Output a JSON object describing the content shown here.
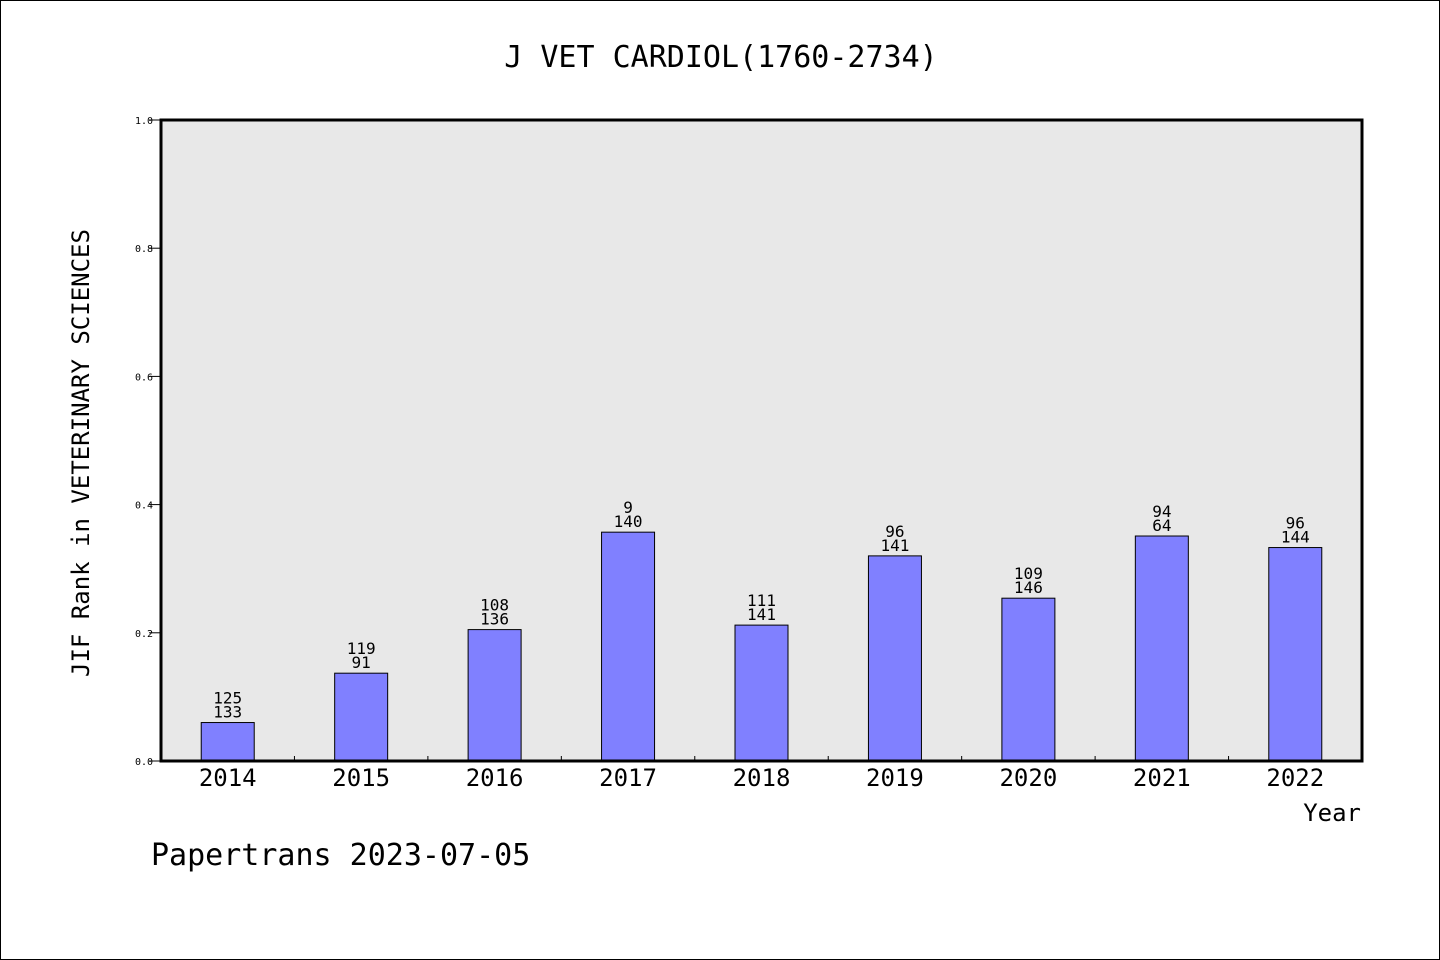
{
  "footer": "Papertrans 2023-07-05",
  "chart_data": {
    "type": "bar",
    "title": "J VET CARDIOL(1760-2734)",
    "xlabel": "Year",
    "ylabel": "JIF Rank in VETERINARY SCIENCES",
    "ylim": [
      0,
      1.0
    ],
    "yticks": [
      "0.0",
      "0.2",
      "0.4",
      "0.6",
      "0.8",
      "1.0"
    ],
    "categories": [
      "2014",
      "2015",
      "2016",
      "2017",
      "2018",
      "2019",
      "2020",
      "2021",
      "2022"
    ],
    "values": [
      0.06,
      0.137,
      0.205,
      0.357,
      0.212,
      0.32,
      0.254,
      0.351,
      0.333
    ],
    "labels_top": [
      "125",
      "119",
      "108",
      "9",
      "111",
      "96",
      "109",
      "94",
      "96"
    ],
    "labels_bottom": [
      "133",
      "91",
      "136",
      "140",
      "141",
      "141",
      "146",
      "64",
      "144"
    ],
    "grid": false,
    "colors": {
      "bar": "#8080ff",
      "plot_bg": "#e8e8e8"
    }
  }
}
